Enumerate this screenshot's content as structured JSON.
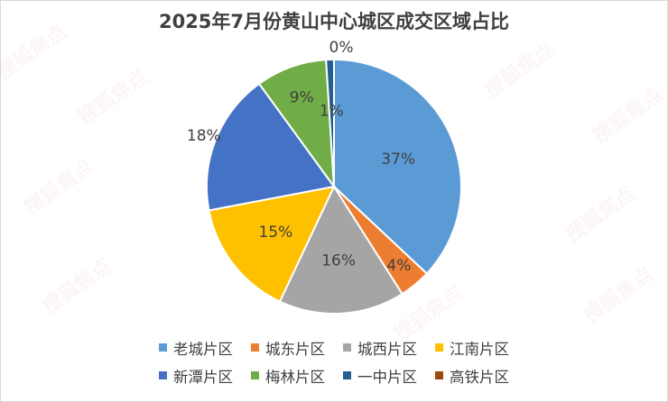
{
  "chart_data": {
    "type": "pie",
    "title": "2025年7月份黄山中心城区成交区域占比",
    "labels": [
      "老城片区",
      "城东片区",
      "城西片区",
      "江南片区",
      "新潭片区",
      "梅林片区",
      "一中片区",
      "高铁片区"
    ],
    "values": [
      37,
      4,
      16,
      15,
      18,
      9,
      1,
      0
    ],
    "data_labels": [
      "37%",
      "4%",
      "16%",
      "15%",
      "18%",
      "9%",
      "1%",
      "0%"
    ],
    "colors": [
      "#5B9BD5",
      "#ED7D31",
      "#A5A5A5",
      "#FFC000",
      "#4472C4",
      "#70AD47",
      "#255E91",
      "#9E480E"
    ],
    "legend_position": "bottom"
  },
  "watermark": {
    "text": "搜狐焦点"
  }
}
